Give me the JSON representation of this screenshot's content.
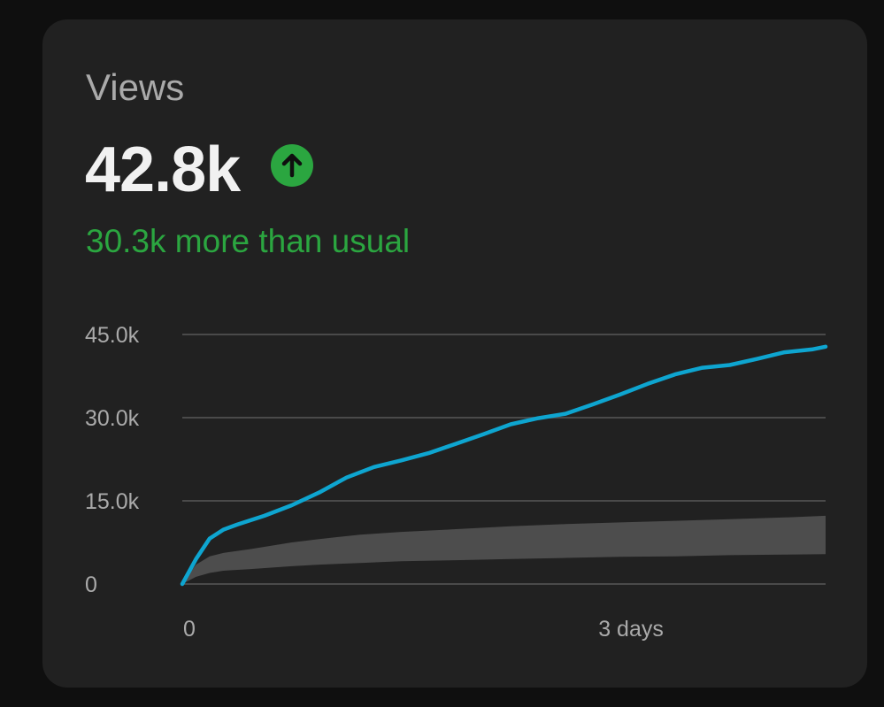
{
  "card": {
    "title": "Views",
    "value": "42.8k",
    "trend_icon": "arrow-up-icon",
    "delta_text": "30.3k more than usual",
    "colors": {
      "accent_line": "#0ea5d0",
      "positive": "#2ba640",
      "typical_band": "#4d4d4d",
      "grid": "#4a4a4a",
      "text_secondary": "#aaaaaa",
      "text_primary": "#f1f1f1"
    }
  },
  "chart_data": {
    "type": "line",
    "title": "Views",
    "xlabel": "",
    "ylabel": "",
    "xlim": [
      0,
      4.7
    ],
    "ylim": [
      0,
      45000
    ],
    "grid": true,
    "y_ticks": [
      {
        "value": 0,
        "label": "0"
      },
      {
        "value": 15000,
        "label": "15.0k"
      },
      {
        "value": 30000,
        "label": "30.0k"
      },
      {
        "value": 45000,
        "label": "45.0k"
      }
    ],
    "x_ticks": [
      {
        "value": 0,
        "label": "0"
      },
      {
        "value": 3,
        "label": "3 days"
      }
    ],
    "series": [
      {
        "name": "",
        "kind": "line",
        "x": [
          0,
          0.1,
          0.2,
          0.3,
          0.4,
          0.5,
          0.6,
          0.8,
          1.0,
          1.2,
          1.4,
          1.6,
          1.8,
          2.0,
          2.2,
          2.4,
          2.6,
          2.8,
          3.0,
          3.2,
          3.4,
          3.6,
          3.8,
          4.0,
          4.2,
          4.4,
          4.6,
          4.7
        ],
        "y": [
          0,
          4500,
          8200,
          9800,
          10700,
          11500,
          12300,
          14200,
          16500,
          19200,
          21100,
          22300,
          23600,
          25300,
          27000,
          28800,
          29900,
          30700,
          32400,
          34200,
          36100,
          37800,
          39000,
          39500,
          40600,
          41800,
          42300,
          42800
        ]
      },
      {
        "name": "",
        "kind": "band",
        "x": [
          0,
          0.1,
          0.2,
          0.3,
          0.5,
          0.8,
          1.0,
          1.3,
          1.6,
          2.0,
          2.4,
          2.8,
          3.2,
          3.6,
          4.0,
          4.4,
          4.7
        ],
        "upper": [
          0,
          3500,
          5000,
          5600,
          6300,
          7500,
          8100,
          8900,
          9400,
          9900,
          10400,
          10800,
          11100,
          11400,
          11700,
          12000,
          12300
        ],
        "lower": [
          0,
          1300,
          2000,
          2400,
          2700,
          3200,
          3500,
          3800,
          4100,
          4300,
          4500,
          4700,
          4900,
          5000,
          5200,
          5300,
          5400
        ]
      }
    ]
  }
}
